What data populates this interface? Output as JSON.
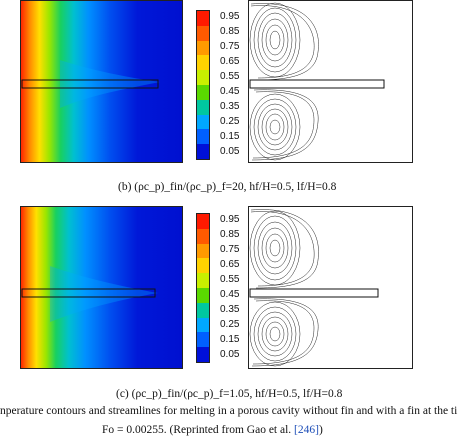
{
  "panel_b": {
    "caption": {
      "label": "(b)",
      "expr": "(ρc_p)_fin/(ρc_p)_f=20, hf/H=0.5, lf/H=0.8"
    }
  },
  "panel_c": {
    "caption": {
      "label": "(c)",
      "expr": "(ρc_p)_fin/(ρc_p)_f=1.05, hf/H=0.5, lf/H=0.8"
    }
  },
  "colorbar": {
    "ticks": [
      "0.95",
      "0.85",
      "0.75",
      "0.65",
      "0.55",
      "0.45",
      "0.35",
      "0.25",
      "0.15",
      "0.05"
    ],
    "colors": [
      "#ff1a00",
      "#ff5a00",
      "#ff9a00",
      "#ffd200",
      "#c8f000",
      "#5ad800",
      "#00c8a0",
      "#00a8ff",
      "#0060ff",
      "#0010d8"
    ]
  },
  "figure_caption": {
    "line1": "nperature contours and streamlines for melting in a porous cavity without fin and with a fin at the ti",
    "line2_prefix": "Fo = 0.00255. (Reprinted from Gao et al.",
    "line2_ref": "[246]",
    "line2_suffix": ")"
  }
}
